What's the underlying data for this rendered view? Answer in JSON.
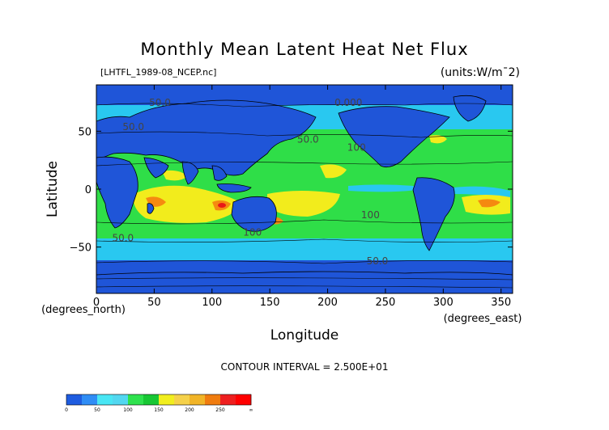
{
  "chart_data": {
    "type": "heatmap",
    "title": "Monthly Mean Latent Heat Net Flux",
    "subtitle": "[LHTFL_1989-08_NCEP.nc]",
    "units": "(units:W/m^2)",
    "xlabel": "Longitude",
    "ylabel": "Latitude",
    "xunit": "(degrees_east)",
    "yunit": "(degrees_north)",
    "xlim": [
      0,
      360
    ],
    "ylim": [
      -90,
      90
    ],
    "xticks": [
      0,
      50,
      100,
      150,
      200,
      250,
      300,
      350
    ],
    "yticks": [
      -50,
      0,
      50
    ],
    "contour_interval": "CONTOUR INTERVAL = 2.500E+01",
    "contour_labels": [
      {
        "text": "50.0",
        "lon": 55,
        "lat": 72
      },
      {
        "text": "0.000",
        "lon": 218,
        "lat": 72
      },
      {
        "text": "50.0",
        "lon": 32,
        "lat": 51
      },
      {
        "text": "50.0",
        "lon": 183,
        "lat": 40
      },
      {
        "text": "100",
        "lon": 225,
        "lat": 33
      },
      {
        "text": "100",
        "lon": 237,
        "lat": -25
      },
      {
        "text": "50.0",
        "lon": 23,
        "lat": -45
      },
      {
        "text": "100",
        "lon": 135,
        "lat": -40
      },
      {
        "text": "50.0",
        "lon": 243,
        "lat": -65
      }
    ],
    "colorbar": {
      "boundaries": [
        "0",
        "50",
        "100",
        "150",
        "200",
        "250",
        "∞"
      ],
      "colors": [
        "#1e5ce0",
        "#2f8df5",
        "#49e6f4",
        "#52d7f0",
        "#2fe24e",
        "#18c734",
        "#f1ee1e",
        "#f5d14a",
        "#f1b427",
        "#f07c0f",
        "#ee1f1f",
        "#ff0000"
      ]
    },
    "palette": {
      "land": "#1f55d8",
      "ocean_low": "#29c8f0",
      "ocean_mid": "#2fde48",
      "ocean_high": "#f2ec1c",
      "hot": "#f58a10",
      "max": "#e81818"
    }
  }
}
